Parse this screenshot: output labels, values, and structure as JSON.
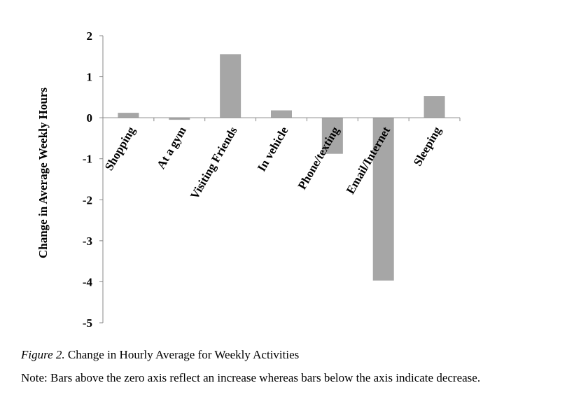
{
  "chart_data": {
    "type": "bar",
    "categories": [
      "Shopping",
      "At a gym",
      "Visiting Friends",
      "In vehicle",
      "Phone/texting",
      "Email/Internet",
      "Sleeping"
    ],
    "values": [
      0.12,
      -0.05,
      1.55,
      0.18,
      -0.88,
      -3.97,
      0.53
    ],
    "ylabel": "Change in Average Weekly Hours",
    "ylim": [
      -5,
      2
    ],
    "yticks": [
      2,
      1,
      0,
      -1,
      -2,
      -3,
      -4,
      -5
    ],
    "bar_color": "#a6a6a6",
    "grid": false,
    "legend": "none"
  },
  "caption": {
    "figure_label": "Figure 2.",
    "title": " Change in Hourly Average for Weekly Activities",
    "note": "Note:  Bars above the zero axis reflect an increase whereas bars below the axis indicate decrease."
  }
}
